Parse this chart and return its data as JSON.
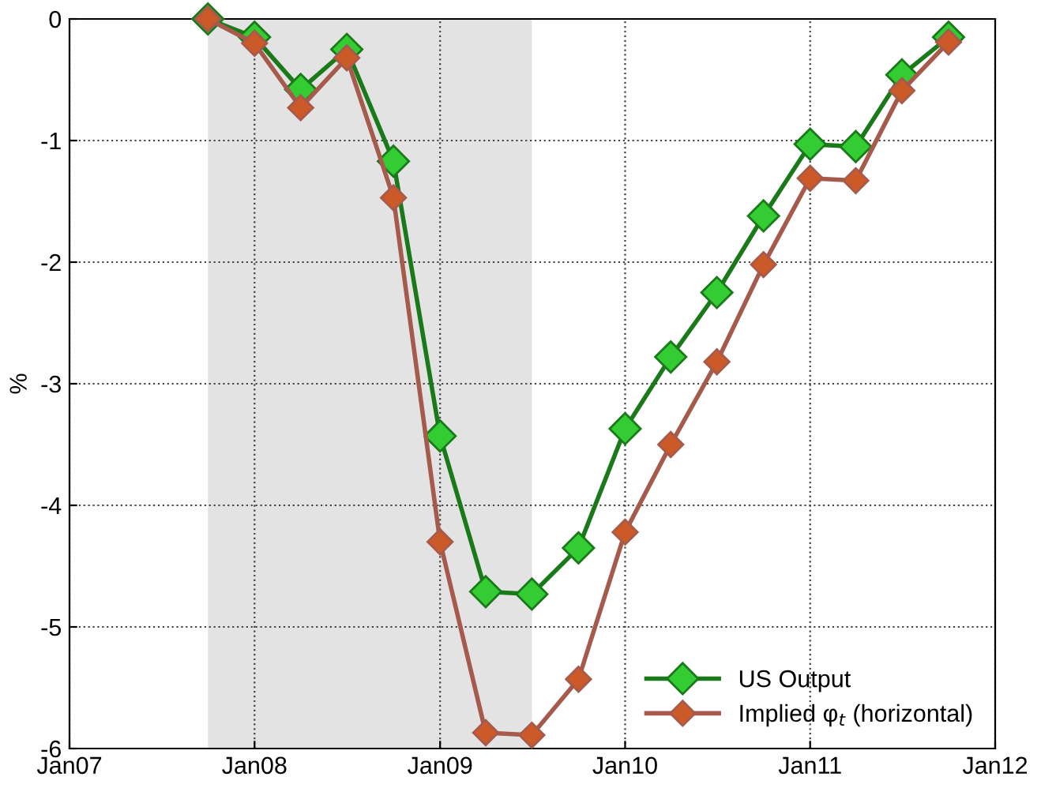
{
  "chart_data": {
    "type": "line",
    "ylabel": "%",
    "x": [
      "2007-10",
      "2008-01",
      "2008-04",
      "2008-07",
      "2008-10",
      "2009-01",
      "2009-04",
      "2009-07",
      "2009-10",
      "2010-01",
      "2010-04",
      "2010-07",
      "2010-10",
      "2011-01",
      "2011-04",
      "2011-07",
      "2011-10"
    ],
    "series": [
      {
        "name": "US Output",
        "color": "#1a7a1a",
        "values": [
          0,
          -0.15,
          -0.58,
          -0.25,
          -1.17,
          -3.43,
          -4.71,
          -4.73,
          -4.35,
          -3.37,
          -2.78,
          -2.25,
          -1.62,
          -1.03,
          -1.05,
          -0.46,
          -0.15
        ]
      },
      {
        "name": "Implied φ$_{t}$ (horizontal)",
        "color": "#a65a4c",
        "values": [
          0,
          -0.2,
          -0.73,
          -0.32,
          -1.47,
          -4.3,
          -5.87,
          -5.89,
          -5.43,
          -4.22,
          -3.5,
          -2.82,
          -2.02,
          -1.31,
          -1.33,
          -0.59,
          -0.19
        ]
      }
    ],
    "marker": "diamond",
    "line_style": "solid",
    "xlim": [
      "2007-01",
      "2012-01"
    ],
    "xticks": [
      {
        "value": "2007-01",
        "label": "Jan07"
      },
      {
        "value": "2008-01",
        "label": "Jan08"
      },
      {
        "value": "2009-01",
        "label": "Jan09"
      },
      {
        "value": "2010-01",
        "label": "Jan10"
      },
      {
        "value": "2011-01",
        "label": "Jan11"
      },
      {
        "value": "2012-01",
        "label": "Jan12"
      }
    ],
    "ylim": [
      -6,
      0
    ],
    "yticks": [
      -6,
      -5,
      -4,
      -3,
      -2,
      -1,
      0
    ],
    "bands": [
      {
        "axis": "x",
        "from": "2007-10",
        "to": "2009-07",
        "color": "#e3e3e3"
      }
    ],
    "grid": true,
    "legend": "bottom right"
  }
}
